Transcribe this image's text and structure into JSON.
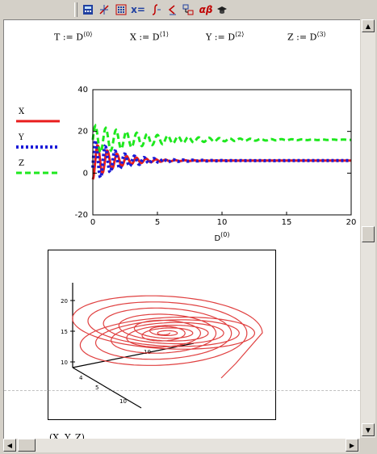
{
  "definitions": [
    {
      "var": "T",
      "op": ":=",
      "mat": "D",
      "col": "0"
    },
    {
      "var": "X",
      "op": ":=",
      "mat": "D",
      "col": "1"
    },
    {
      "var": "Y",
      "op": ":=",
      "mat": "D",
      "col": "2"
    },
    {
      "var": "Z",
      "op": ":=",
      "mat": "D",
      "col": "3"
    }
  ],
  "toolbar": {
    "icons": [
      "calculator-icon",
      "graph-icon",
      "matrix-icon",
      "evaluation-icon",
      "calculus-icon",
      "boolean-icon",
      "programming-icon",
      "greek-icon",
      "symbolic-icon"
    ],
    "evaluation_label": "x=",
    "greek_label": "αβ"
  },
  "legend": [
    {
      "name": "X",
      "color": "#e81c1c",
      "style": "solid"
    },
    {
      "name": "Y",
      "color": "#1c1cd8",
      "style": "dotted"
    },
    {
      "name": "Z",
      "color": "#1ee81e",
      "style": "dashed"
    }
  ],
  "chart_data": [
    {
      "type": "line",
      "xlabel": "D",
      "xlabel_sup": "(0)",
      "xlim": [
        0,
        20
      ],
      "ylim": [
        -20,
        40
      ],
      "x_ticks": [
        "0",
        "5",
        "10",
        "15",
        "20"
      ],
      "y_ticks": [
        "-20",
        "0",
        "20",
        "40"
      ],
      "series": [
        {
          "name": "X",
          "color": "#e81c1c",
          "style": "solid",
          "final": 6,
          "amp0": 9,
          "decay": 0.55,
          "period": 0.75,
          "phase": 0
        },
        {
          "name": "Y",
          "color": "#1c1cd8",
          "style": "dotted",
          "final": 6,
          "amp0": 11,
          "decay": 0.5,
          "period": 0.75,
          "phase": 0.15
        },
        {
          "name": "Z",
          "color": "#1ee81e",
          "style": "dashed",
          "final": 16,
          "amp0": 7,
          "decay": 0.22,
          "period": 0.8,
          "phase": 0.2
        }
      ]
    },
    {
      "type": "3d-curve",
      "caption": "(X, Y, Z)",
      "color": "#e04040",
      "z_ticks": [
        "20",
        "15",
        "10"
      ],
      "x_ticks": [
        "4",
        "5",
        "10"
      ],
      "y_tick": "10"
    }
  ]
}
